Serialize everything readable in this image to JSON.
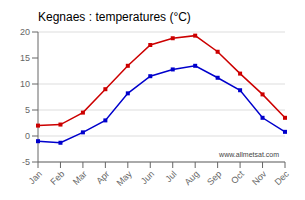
{
  "chart_data": {
    "type": "line",
    "title": "Kegnaes : temperatures (°C)",
    "categories": [
      "Jan",
      "Feb",
      "Mar",
      "Apr",
      "May",
      "Jun",
      "Jul",
      "Aug",
      "Sep",
      "Oct",
      "Nov",
      "Dec"
    ],
    "series": [
      {
        "color": "#cc0000",
        "marker": "square",
        "values": [
          2.0,
          2.2,
          4.5,
          9.0,
          13.5,
          17.5,
          18.8,
          19.3,
          16.2,
          12.0,
          8.0,
          3.5
        ]
      },
      {
        "color": "#0000cc",
        "marker": "square",
        "values": [
          -1.0,
          -1.3,
          0.7,
          3.0,
          8.2,
          11.5,
          12.8,
          13.5,
          11.2,
          8.8,
          3.5,
          0.8
        ]
      }
    ],
    "ylim": [
      -5,
      20
    ],
    "yticks": [
      -5,
      0,
      5,
      10,
      15,
      20
    ],
    "grid": "y",
    "annotations": [
      "www.allmetsat.com"
    ]
  }
}
